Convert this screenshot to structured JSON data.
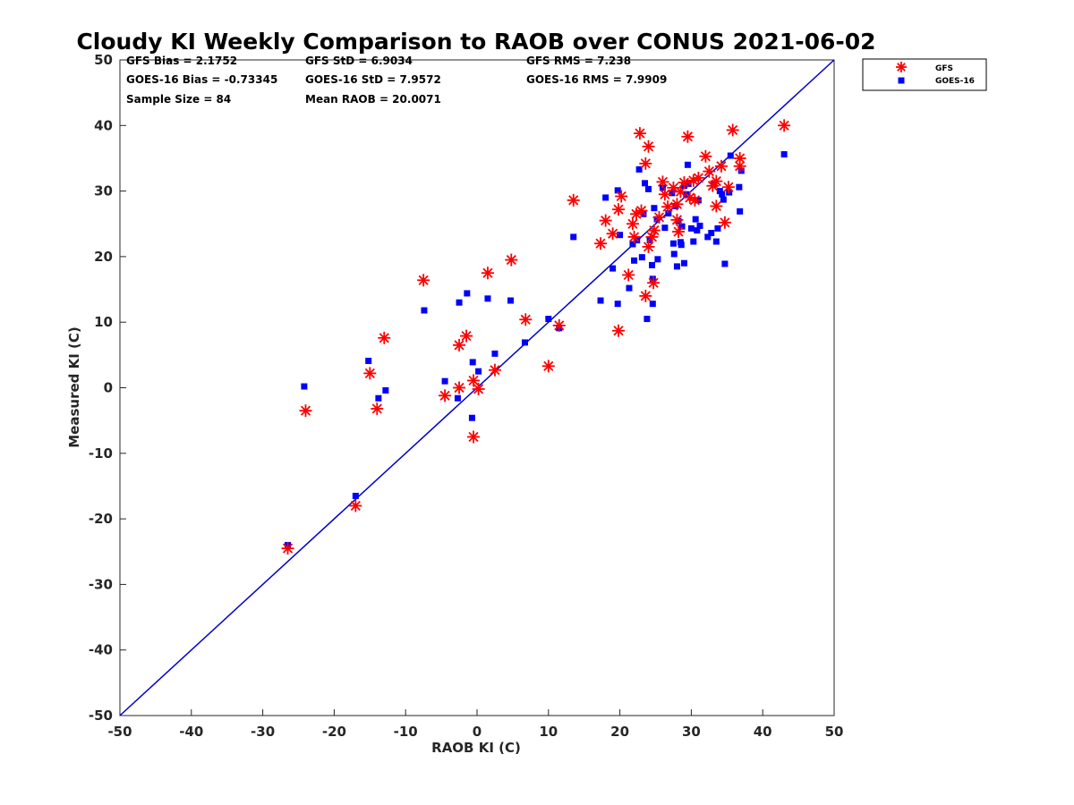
{
  "chart_data": {
    "type": "scatter",
    "title": "Cloudy KI Weekly Comparison to RAOB over CONUS 2021-06-02",
    "xlabel": "RAOB KI (C)",
    "ylabel": "Measured KI (C)",
    "xlim": [
      -50,
      50
    ],
    "ylim": [
      -50,
      50
    ],
    "xticks": [
      -50,
      -40,
      -30,
      -20,
      -10,
      0,
      10,
      20,
      30,
      40,
      50
    ],
    "yticks": [
      -50,
      -40,
      -30,
      -20,
      -10,
      0,
      10,
      20,
      30,
      40,
      50
    ],
    "grid": false,
    "legend_position": "outside-top-right",
    "reference_line": {
      "label": "1:1",
      "color": "#0000cc",
      "from": [
        -50,
        -50
      ],
      "to": [
        50,
        50
      ]
    },
    "stats": {
      "gfs_bias": "GFS Bias = 2.1752",
      "gfs_std": "GFS StD = 6.9034",
      "gfs_rms": "GFS RMS = 7.238",
      "goes_bias": "GOES-16 Bias = -0.73345",
      "goes_std": "GOES-16 StD = 7.9572",
      "goes_rms": "GOES-16 RMS = 7.9909",
      "sample_size": "Sample Size = 84",
      "mean_raob": "Mean RAOB = 20.0071"
    },
    "series": [
      {
        "name": "GFS",
        "marker": "asterisk",
        "color": "#ff0000",
        "points": [
          [
            -26.5,
            -24.5
          ],
          [
            -24,
            -3.5
          ],
          [
            -17,
            -18
          ],
          [
            -15,
            2.2
          ],
          [
            -14,
            -3.2
          ],
          [
            -13,
            7.6
          ],
          [
            -7.5,
            16.4
          ],
          [
            -4.5,
            -1.2
          ],
          [
            -2.5,
            0
          ],
          [
            -2.5,
            6.5
          ],
          [
            -1.5,
            7.9
          ],
          [
            -0.5,
            1.1
          ],
          [
            -0.5,
            -7.5
          ],
          [
            0.2,
            -0.2
          ],
          [
            1.5,
            17.5
          ],
          [
            2.5,
            2.7
          ],
          [
            4.8,
            19.5
          ],
          [
            6.8,
            10.4
          ],
          [
            10,
            3.3
          ],
          [
            11.5,
            9.5
          ],
          [
            13.5,
            28.6
          ],
          [
            17.3,
            22
          ],
          [
            18,
            25.5
          ],
          [
            19,
            23.5
          ],
          [
            19.8,
            27.2
          ],
          [
            20.2,
            29.2
          ],
          [
            19.8,
            8.7
          ],
          [
            21.2,
            17.2
          ],
          [
            21.8,
            25
          ],
          [
            22,
            23
          ],
          [
            22.3,
            26.5
          ],
          [
            22.8,
            38.8
          ],
          [
            23,
            27
          ],
          [
            23.6,
            34.2
          ],
          [
            24,
            36.8
          ],
          [
            23.6,
            14
          ],
          [
            24,
            21.5
          ],
          [
            24.5,
            23
          ],
          [
            24.8,
            24
          ],
          [
            24.7,
            16
          ],
          [
            25.5,
            26
          ],
          [
            26,
            31.4
          ],
          [
            26.3,
            29.5
          ],
          [
            26.7,
            27.6
          ],
          [
            27.5,
            30.5
          ],
          [
            28,
            28
          ],
          [
            28,
            25.6
          ],
          [
            28.2,
            23.8
          ],
          [
            28.5,
            29.9
          ],
          [
            29,
            31.3
          ],
          [
            29.5,
            38.3
          ],
          [
            29.8,
            29
          ],
          [
            30.3,
            31.6
          ],
          [
            30.5,
            28.6
          ],
          [
            31,
            32
          ],
          [
            32,
            35.3
          ],
          [
            32.5,
            33
          ],
          [
            33,
            30.8
          ],
          [
            33.5,
            27.7
          ],
          [
            33.5,
            31.5
          ],
          [
            34.2,
            33.8
          ],
          [
            34.7,
            25.2
          ],
          [
            35.2,
            30.6
          ],
          [
            35.8,
            39.3
          ],
          [
            36.8,
            33.8
          ],
          [
            36.8,
            35
          ],
          [
            43,
            40
          ]
        ]
      },
      {
        "name": "GOES-16",
        "marker": "square",
        "color": "#0000ff",
        "points": [
          [
            -26.5,
            -24
          ],
          [
            -24.2,
            0.2
          ],
          [
            -17,
            -16.5
          ],
          [
            -15.2,
            4.1
          ],
          [
            -13.8,
            -1.6
          ],
          [
            -12.8,
            -0.4
          ],
          [
            -7.4,
            11.8
          ],
          [
            -4.5,
            1
          ],
          [
            -2.7,
            -1.6
          ],
          [
            -2.5,
            13
          ],
          [
            -1.4,
            14.4
          ],
          [
            -0.7,
            -4.6
          ],
          [
            -0.6,
            3.9
          ],
          [
            0.2,
            2.5
          ],
          [
            1.5,
            13.6
          ],
          [
            2.5,
            5.2
          ],
          [
            4.7,
            13.3
          ],
          [
            6.7,
            6.9
          ],
          [
            10,
            10.5
          ],
          [
            11.5,
            9.1
          ],
          [
            13.5,
            23
          ],
          [
            17.3,
            13.3
          ],
          [
            18,
            29
          ],
          [
            19,
            18.2
          ],
          [
            19.7,
            30.1
          ],
          [
            19.7,
            12.8
          ],
          [
            20,
            23.3
          ],
          [
            21.3,
            15.2
          ],
          [
            21.8,
            21.9
          ],
          [
            22,
            19.4
          ],
          [
            22.4,
            22.5
          ],
          [
            22.7,
            33.3
          ],
          [
            23.1,
            19.9
          ],
          [
            23.3,
            26.5
          ],
          [
            23.5,
            31.2
          ],
          [
            23.8,
            10.5
          ],
          [
            24,
            30.3
          ],
          [
            24.2,
            22.5
          ],
          [
            24.5,
            18.7
          ],
          [
            24.6,
            16.6
          ],
          [
            24.6,
            12.8
          ],
          [
            24.8,
            27.4
          ],
          [
            25.2,
            25.7
          ],
          [
            25.3,
            19.6
          ],
          [
            26,
            30.5
          ],
          [
            26.3,
            24.4
          ],
          [
            26.8,
            26.6
          ],
          [
            27.3,
            29.7
          ],
          [
            27.5,
            22
          ],
          [
            27.6,
            20.4
          ],
          [
            27.8,
            27.7
          ],
          [
            28,
            18.5
          ],
          [
            28.2,
            25.4
          ],
          [
            28.5,
            22.2
          ],
          [
            28.6,
            21.8
          ],
          [
            28.7,
            24.6
          ],
          [
            29,
            19
          ],
          [
            29,
            30.8
          ],
          [
            29.3,
            29.5
          ],
          [
            29.5,
            34
          ],
          [
            29.6,
            31.1
          ],
          [
            30,
            24.3
          ],
          [
            30.3,
            22.3
          ],
          [
            30.6,
            25.7
          ],
          [
            30.8,
            24
          ],
          [
            31,
            28.6
          ],
          [
            31.2,
            24.7
          ],
          [
            32.3,
            23
          ],
          [
            32.8,
            23.6
          ],
          [
            33.2,
            31
          ],
          [
            33.5,
            22.3
          ],
          [
            33.7,
            24.3
          ],
          [
            34,
            30
          ],
          [
            34.3,
            29.5
          ],
          [
            34.5,
            28.7
          ],
          [
            34.7,
            18.9
          ],
          [
            35.3,
            29.8
          ],
          [
            35.5,
            35.4
          ],
          [
            36.7,
            30.6
          ],
          [
            36.8,
            26.9
          ],
          [
            37,
            33.1
          ],
          [
            43,
            35.6
          ]
        ]
      }
    ]
  }
}
